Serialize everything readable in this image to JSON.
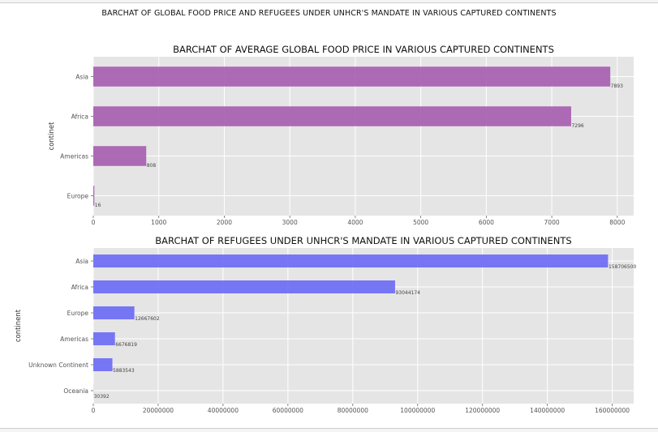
{
  "suptitle": "BARCHAT OF GLOBAL FOOD PRICE AND REFUGEES UNDER UNHCR'S MANDATE IN VARIOUS CAPTURED CONTINENTS",
  "colors": {
    "plot_bg": "#e5e5e5",
    "grid": "#ffffff",
    "bar1": "#a760b1",
    "bar2": "#6d6df5"
  },
  "chart_data": [
    {
      "type": "bar",
      "orientation": "horizontal",
      "title": "BARCHAT OF AVERAGE GLOBAL FOOD PRICE IN VARIOUS CAPTURED CONTINENTS",
      "xlabel": "",
      "ylabel": "continet",
      "categories": [
        "Asia",
        "Africa",
        "Americas",
        "Europe"
      ],
      "values": [
        7893,
        7296,
        808,
        16
      ],
      "data_labels": [
        "7893",
        "7296",
        "808",
        "16"
      ],
      "xlim": [
        0,
        8250
      ],
      "xticks": [
        0,
        1000,
        2000,
        3000,
        4000,
        5000,
        6000,
        7000,
        8000
      ],
      "xtick_labels": [
        "0",
        "1000",
        "2000",
        "3000",
        "4000",
        "5000",
        "6000",
        "7000",
        "8000"
      ],
      "grid": true,
      "color": "#a760b1"
    },
    {
      "type": "bar",
      "orientation": "horizontal",
      "title": "BARCHAT OF REFUGEES UNDER UNHCR'S MANDATE IN VARIOUS CAPTURED CONTINENTS",
      "xlabel": "",
      "ylabel": "continent",
      "categories": [
        "Asia",
        "Africa",
        "Europe",
        "Americas",
        "Unknown Continent",
        "Oceania"
      ],
      "values": [
        158706500,
        93044174,
        12667602,
        6676819,
        5883543,
        30392
      ],
      "data_labels": [
        "158706500",
        "93044174",
        "12667602",
        "6676819",
        "5883543",
        "30392"
      ],
      "xlim": [
        0,
        166600000
      ],
      "xticks": [
        0,
        20000000,
        40000000,
        60000000,
        80000000,
        100000000,
        120000000,
        140000000,
        160000000
      ],
      "xtick_labels": [
        "0",
        "20000000",
        "40000000",
        "60000000",
        "80000000",
        "100000000",
        "120000000",
        "140000000",
        "160000000"
      ],
      "grid": true,
      "color": "#6d6df5"
    }
  ]
}
